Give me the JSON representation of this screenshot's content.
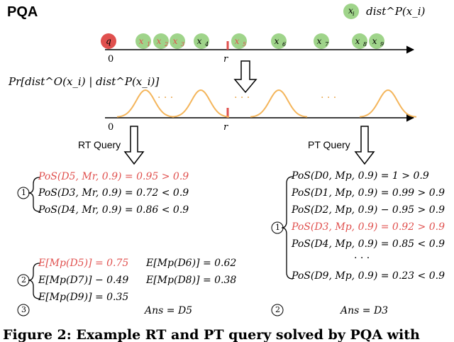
{
  "title": "PQA",
  "legend": {
    "symbol": "x",
    "symbol_sub": "i",
    "text": "dist^P(x_i)"
  },
  "axis1": {
    "origin_label": "0",
    "threshold_label": "r",
    "points": [
      {
        "name": "q",
        "color": "#e0504e",
        "label_color": "#000"
      },
      {
        "name": "x1",
        "color": "#9fd48a",
        "label_color": "#e0504e"
      },
      {
        "name": "x2",
        "color": "#9fd48a",
        "label_color": "#e0504e"
      },
      {
        "name": "x3",
        "color": "#9fd48a",
        "label_color": "#e0504e"
      },
      {
        "name": "x4",
        "color": "#9fd48a",
        "label_color": "#000"
      },
      {
        "name": "x5",
        "color": "#9fd48a",
        "label_color": "#e0504e"
      },
      {
        "name": "x6",
        "color": "#9fd48a",
        "label_color": "#000"
      },
      {
        "name": "x7",
        "color": "#9fd48a",
        "label_color": "#000"
      },
      {
        "name": "x8",
        "color": "#9fd48a",
        "label_color": "#000"
      },
      {
        "name": "x9",
        "color": "#9fd48a",
        "label_color": "#000"
      }
    ]
  },
  "axis2": {
    "label": "Pr[dist^O(x_i) | dist^P(x_i)]",
    "origin_label": "0",
    "threshold_label": "r",
    "ellipsis": "· · ·"
  },
  "rt": {
    "query_label": "RT Query",
    "step1_marker": "1",
    "step1": [
      {
        "text": "PoS(D5, Mr, 0.9) = 0.95 > 0.9",
        "highlight": true
      },
      {
        "text": "PoS(D3, Mr, 0.9) = 0.72 < 0.9",
        "highlight": false
      },
      {
        "text": "PoS(D4, Mr, 0.9) = 0.86 < 0.9",
        "highlight": false
      }
    ],
    "step2_marker": "2",
    "step2": [
      {
        "text": "E[Mp(D5)] = 0.75",
        "highlight": true
      },
      {
        "text": "E[Mp(D6)] = 0.62",
        "highlight": false
      },
      {
        "text": "E[Mp(D7)] − 0.49",
        "highlight": false
      },
      {
        "text": "E[Mp(D8)] = 0.38",
        "highlight": false
      },
      {
        "text": "E[Mp(D9)] = 0.35",
        "highlight": false
      }
    ],
    "step3_marker": "3",
    "answer": "Ans = D5"
  },
  "pt": {
    "query_label": "PT Query",
    "step1_marker": "1",
    "rows": [
      {
        "text": "PoS(D0, Mp, 0.9) = 1 > 0.9",
        "highlight": false
      },
      {
        "text": "PoS(D1, Mp, 0.9) = 0.99 > 0.9",
        "highlight": false
      },
      {
        "text": "PoS(D2, Mp, 0.9) − 0.95 > 0.9",
        "highlight": false
      },
      {
        "text": "PoS(D3, Mp, 0.9) = 0.92 > 0.9",
        "highlight": true
      },
      {
        "text": "PoS(D4, Mp, 0.9) = 0.85 < 0.9",
        "highlight": false
      },
      {
        "text": "· · ·",
        "highlight": false
      },
      {
        "text": "PoS(D9, Mp, 0.9) = 0.23 < 0.9",
        "highlight": false
      }
    ],
    "step2_marker": "2",
    "answer": "Ans = D3"
  },
  "caption": "Figure 2: Example RT and PT query solved by PQA with",
  "colors": {
    "highlight": "#e0504e",
    "point_fill": "#9fd48a",
    "query_fill": "#e0504e",
    "curve": "#f4b55b"
  }
}
